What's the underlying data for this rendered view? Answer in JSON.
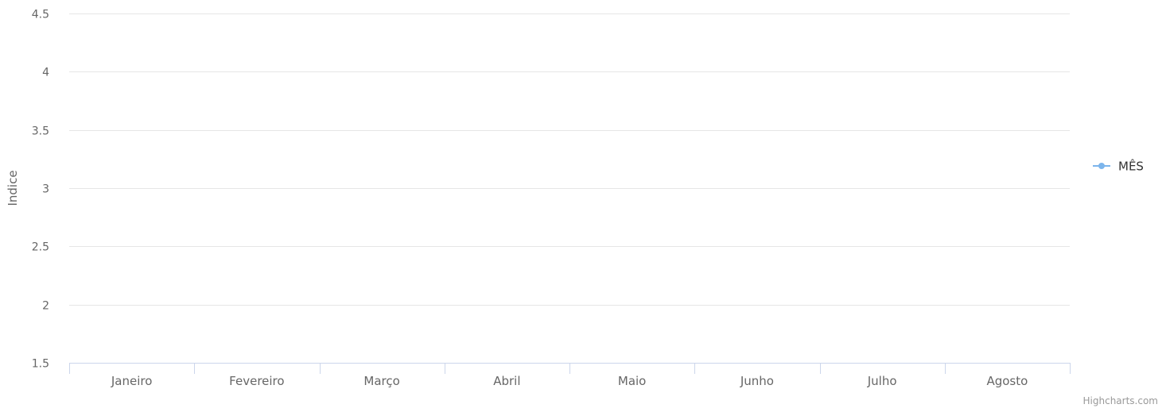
{
  "chart_data": {
    "type": "line",
    "title": "",
    "xlabel": "",
    "ylabel": "Indice",
    "categories": [
      "Janeiro",
      "Fevereiro",
      "Março",
      "Abril",
      "Maio",
      "Junho",
      "Julho",
      "Agosto"
    ],
    "ylim": [
      1.5,
      4.5
    ],
    "yticks": [
      1.5,
      2,
      2.5,
      3,
      3.5,
      4,
      4.5
    ],
    "grid": true,
    "legend_position": "right",
    "series": [
      {
        "name": "MÊS",
        "color": "#7cb5ec",
        "values": [
          null,
          null,
          null,
          null,
          null,
          null,
          null,
          null
        ]
      }
    ]
  },
  "credits": "Highcharts.com"
}
